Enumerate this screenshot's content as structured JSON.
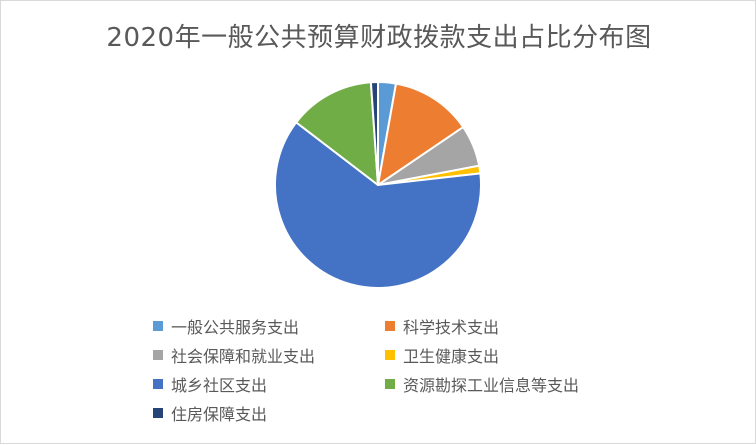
{
  "chart_data": {
    "type": "pie",
    "title": "2020年一般公共预算财政拨款支出占比分布图",
    "legend_position": "bottom",
    "series": [
      {
        "name": "一般公共服务支出",
        "value": 2.8,
        "color": "#5b9bd5"
      },
      {
        "name": "科学技术支出",
        "value": 12.7,
        "color": "#ed7d31"
      },
      {
        "name": "社会保障和就业支出",
        "value": 6.5,
        "color": "#a5a5a5"
      },
      {
        "name": "卫生健康支出",
        "value": 1.2,
        "color": "#ffc000"
      },
      {
        "name": "城乡社区支出",
        "value": 62.2,
        "color": "#4472c4"
      },
      {
        "name": "资源勘探工业信息等支出",
        "value": 13.5,
        "color": "#70ad47"
      },
      {
        "name": "住房保障支出",
        "value": 1.1,
        "color": "#264478"
      }
    ]
  }
}
